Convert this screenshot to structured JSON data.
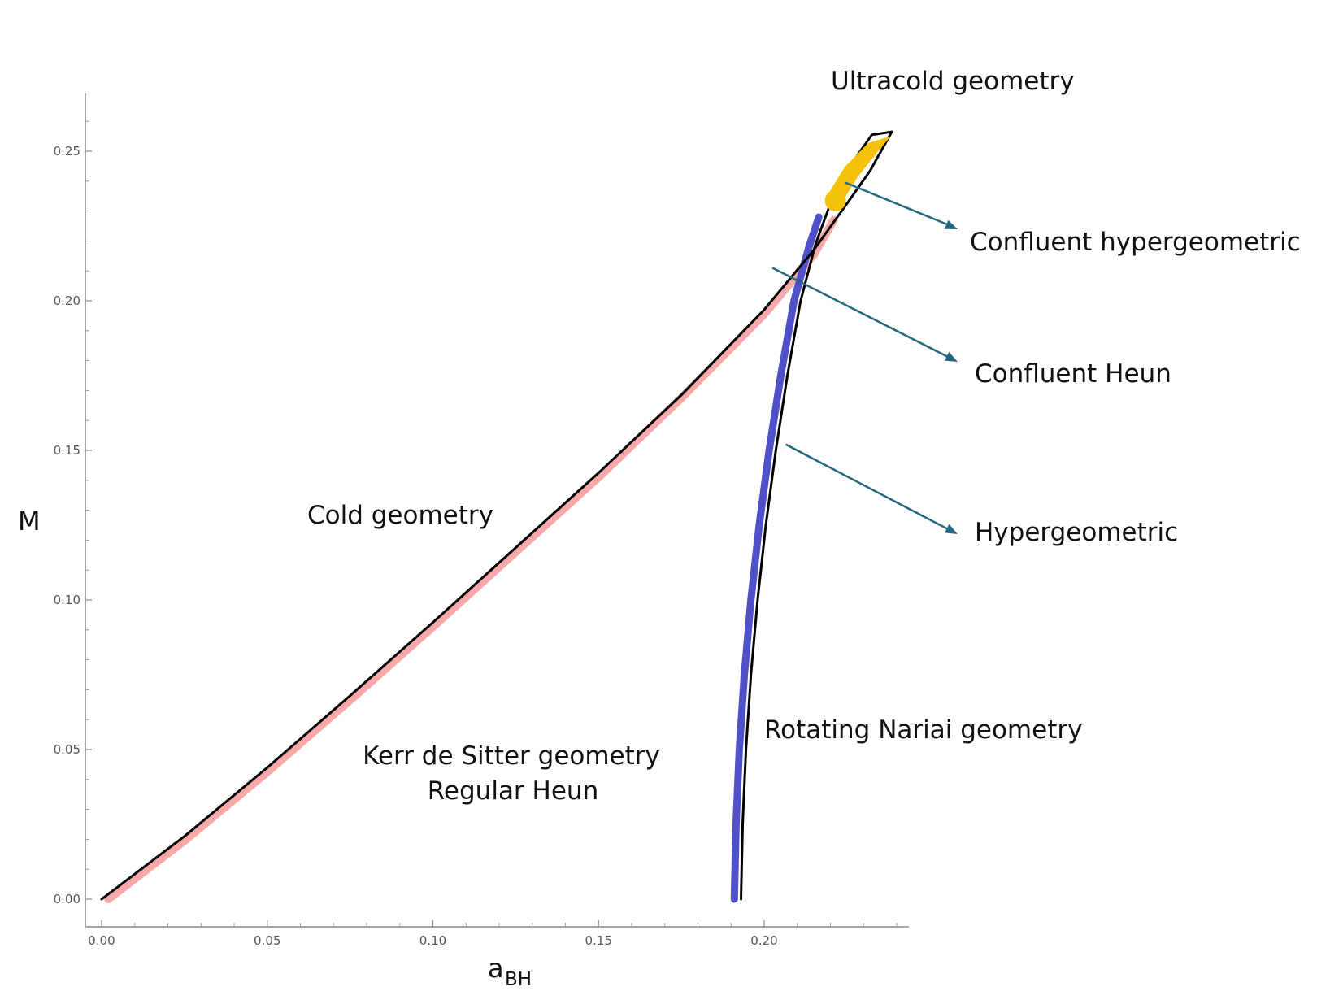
{
  "chart_data": {
    "type": "line",
    "xlabel": "a",
    "xlabel_subscript": "BH",
    "ylabel": "M",
    "xlim": [
      0,
      0.244
    ],
    "ylim": [
      -0.004,
      0.27
    ],
    "x_ticks": [
      "0.00",
      "0.05",
      "0.10",
      "0.15",
      "0.20"
    ],
    "y_ticks": [
      "0.00",
      "0.05",
      "0.10",
      "0.15",
      "0.20",
      "0.25"
    ],
    "grid": false,
    "series": [
      {
        "key": "cold",
        "color": "#000000",
        "points": [
          [
            0.0,
            0.0
          ],
          [
            0.025,
            0.021
          ],
          [
            0.05,
            0.044
          ],
          [
            0.075,
            0.068
          ],
          [
            0.1,
            0.0925
          ],
          [
            0.125,
            0.1175
          ],
          [
            0.15,
            0.1425
          ],
          [
            0.175,
            0.1685
          ],
          [
            0.2,
            0.197
          ],
          [
            0.215,
            0.217
          ],
          [
            0.225,
            0.2325
          ],
          [
            0.232,
            0.2435
          ],
          [
            0.2385,
            0.2565
          ]
        ]
      },
      {
        "key": "nariai",
        "color": "#000000",
        "points": [
          [
            0.193,
            0.0
          ],
          [
            0.1935,
            0.025
          ],
          [
            0.1945,
            0.05
          ],
          [
            0.196,
            0.075
          ],
          [
            0.198,
            0.1
          ],
          [
            0.2005,
            0.125
          ],
          [
            0.2035,
            0.15
          ],
          [
            0.207,
            0.175
          ],
          [
            0.211,
            0.2
          ],
          [
            0.2155,
            0.219
          ],
          [
            0.2205,
            0.234
          ],
          [
            0.2265,
            0.246
          ],
          [
            0.2325,
            0.2555
          ],
          [
            0.2385,
            0.2565
          ]
        ]
      },
      {
        "key": "confluent-heun-band",
        "color": "#f7a8a8",
        "points": [
          [
            0.002,
            0.0
          ],
          [
            0.025,
            0.0195
          ],
          [
            0.05,
            0.0425
          ],
          [
            0.075,
            0.0665
          ],
          [
            0.1,
            0.091
          ],
          [
            0.125,
            0.116
          ],
          [
            0.15,
            0.141
          ],
          [
            0.175,
            0.1675
          ],
          [
            0.2,
            0.1955
          ],
          [
            0.215,
            0.2155
          ],
          [
            0.221,
            0.227
          ]
        ]
      },
      {
        "key": "hypergeometric-band",
        "color": "#5050c8",
        "points": [
          [
            0.191,
            0.0
          ],
          [
            0.1915,
            0.025
          ],
          [
            0.1925,
            0.05
          ],
          [
            0.194,
            0.075
          ],
          [
            0.196,
            0.1
          ],
          [
            0.1985,
            0.125
          ],
          [
            0.2015,
            0.15
          ],
          [
            0.205,
            0.175
          ],
          [
            0.209,
            0.2
          ],
          [
            0.2135,
            0.218
          ],
          [
            0.2165,
            0.228
          ]
        ]
      },
      {
        "key": "confluent-hypergeometric-region",
        "color": "#f5c20b",
        "points": [
          [
            0.2195,
            0.2355
          ],
          [
            0.2245,
            0.2445
          ],
          [
            0.2315,
            0.2525
          ],
          [
            0.2375,
            0.2545
          ],
          [
            0.233,
            0.2485
          ],
          [
            0.228,
            0.2415
          ],
          [
            0.2235,
            0.2335
          ],
          [
            0.2205,
            0.2305
          ]
        ]
      }
    ],
    "annotations": [
      {
        "key": "ultracold",
        "text": "Ultracold geometry",
        "color": "#111111"
      },
      {
        "key": "cold",
        "text": "Cold geometry",
        "color": "#111111"
      },
      {
        "key": "nariai",
        "text": "Rotating Nariai geometry",
        "color": "#111111"
      },
      {
        "key": "kds1",
        "text": "Kerr de Sitter geometry",
        "color": "#111111"
      },
      {
        "key": "kds2",
        "text": "Regular Heun",
        "color": "#111111"
      },
      {
        "key": "conf-hyper",
        "text": "Confluent hypergeometric",
        "color": "#f2b81e",
        "arrow_from": [
          0.2245,
          0.2395
        ]
      },
      {
        "key": "conf-heun",
        "text": "Confluent Heun",
        "color": "#e8192c",
        "arrow_from": [
          0.2025,
          0.211
        ]
      },
      {
        "key": "hyper",
        "text": "Hypergeometric",
        "color": "#2f4b7c",
        "arrow_from": [
          0.2065,
          0.152
        ]
      }
    ],
    "arrow_color": "#256680"
  }
}
